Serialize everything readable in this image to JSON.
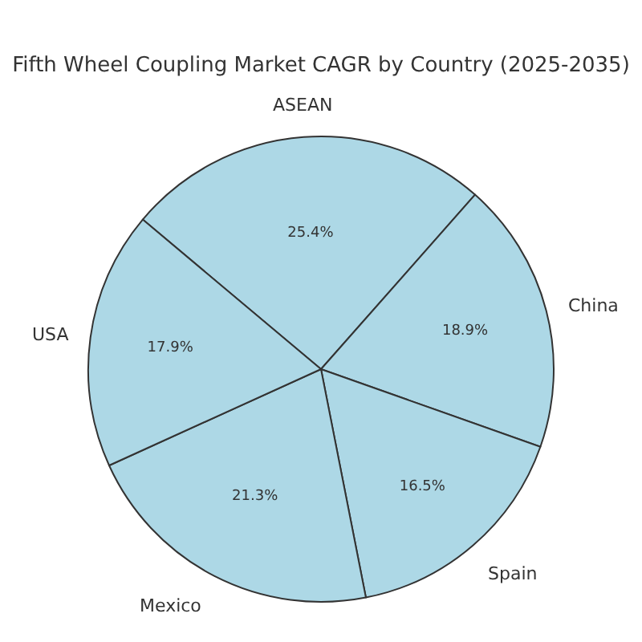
{
  "chart_data": {
    "type": "pie",
    "title": "Fifth Wheel Coupling Market CAGR by Country (2025-2035)",
    "categories": [
      "ASEAN",
      "China",
      "Spain",
      "Mexico",
      "USA"
    ],
    "values": [
      25.4,
      18.9,
      16.5,
      21.3,
      17.9
    ],
    "value_labels": [
      "25.4%",
      "18.9%",
      "16.5%",
      "21.3%",
      "17.9%"
    ],
    "colors": [
      "#add8e6",
      "#add8e6",
      "#add8e6",
      "#add8e6",
      "#add8e6"
    ],
    "legend": false
  }
}
